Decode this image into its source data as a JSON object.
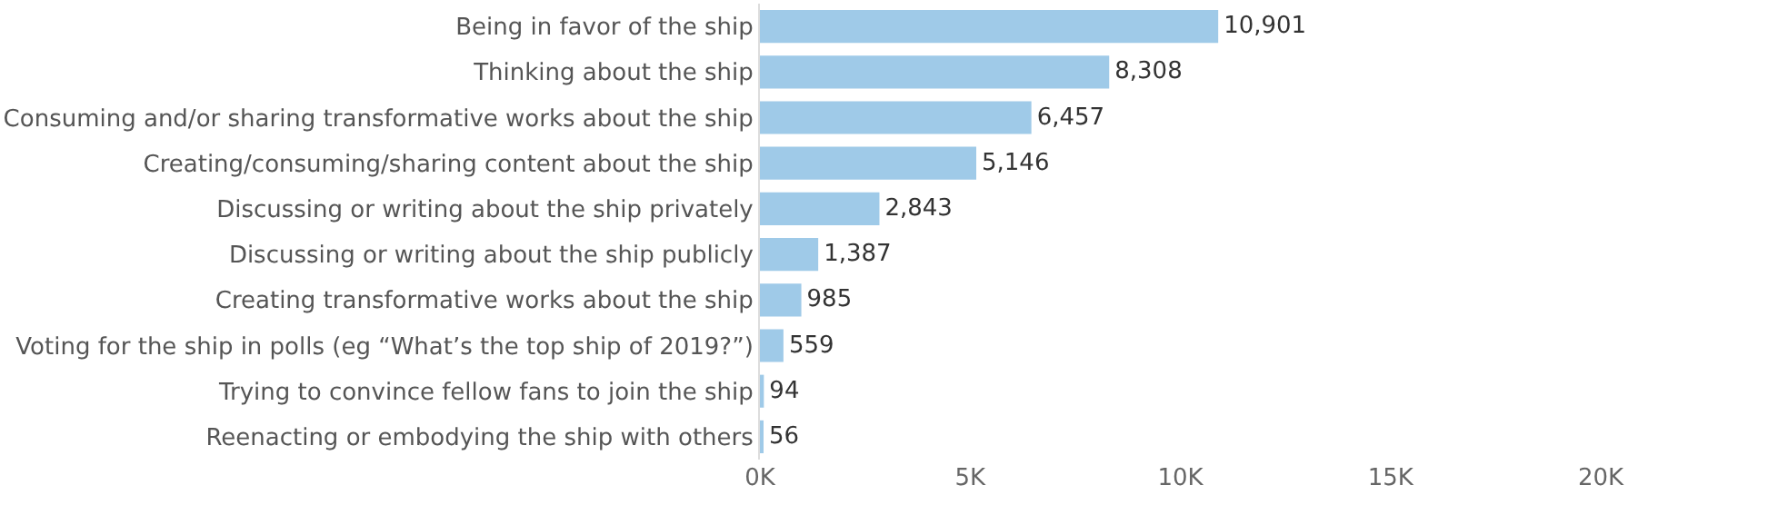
{
  "chart_data": {
    "type": "bar",
    "orientation": "horizontal",
    "categories": [
      "Being in favor of the ship",
      "Thinking about the ship",
      "Consuming and/or sharing transformative works about the ship",
      "Creating/consuming/sharing content about the ship",
      "Discussing or writing about the ship privately",
      "Discussing or writing about the ship publicly",
      "Creating transformative works about the ship",
      "Voting for the ship in polls (eg “What’s the top ship of 2019?”)",
      "Trying to convince fellow fans to join the ship",
      "Reenacting or embodying the ship with others"
    ],
    "values": [
      10901,
      8308,
      6457,
      5146,
      2843,
      1387,
      985,
      559,
      94,
      56
    ],
    "value_labels": [
      "10,901",
      "8,308",
      "6,457",
      "5,146",
      "2,843",
      "1,387",
      "985",
      "559",
      "94",
      "56"
    ],
    "color": "#9fcae8",
    "xlim": [
      0,
      24000
    ],
    "xticks": [
      {
        "value": 0,
        "label": "0K"
      },
      {
        "value": 5000,
        "label": "5K"
      },
      {
        "value": 10000,
        "label": "10K"
      },
      {
        "value": 15000,
        "label": "15K"
      },
      {
        "value": 20000,
        "label": "20K"
      }
    ],
    "xlabel": null
  }
}
